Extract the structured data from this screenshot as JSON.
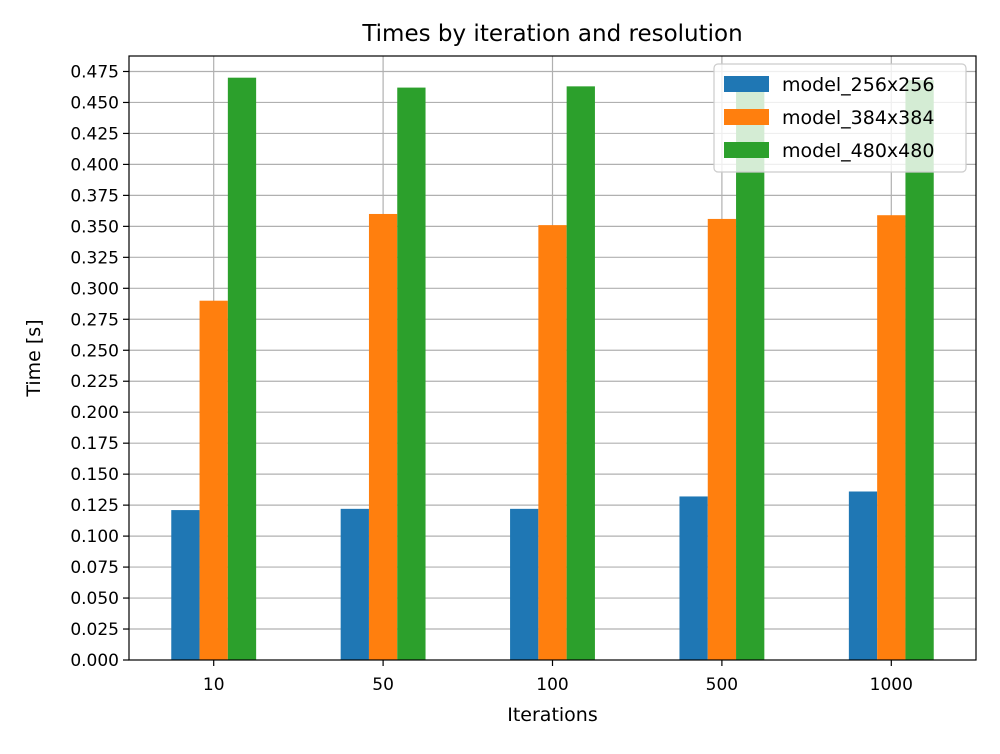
{
  "chart_data": {
    "type": "bar",
    "title": "Times by iteration and resolution",
    "xlabel": "Iterations",
    "ylabel": "Time [s]",
    "categories": [
      "10",
      "50",
      "100",
      "500",
      "1000"
    ],
    "ylim": [
      0,
      0.4875
    ],
    "yticks": [
      "0.000",
      "0.025",
      "0.050",
      "0.075",
      "0.100",
      "0.125",
      "0.150",
      "0.175",
      "0.200",
      "0.225",
      "0.250",
      "0.275",
      "0.300",
      "0.325",
      "0.350",
      "0.375",
      "0.400",
      "0.425",
      "0.450",
      "0.475"
    ],
    "grid": true,
    "legend_position": "top-right",
    "series": [
      {
        "name": "model_256x256",
        "color": "#1f77b4",
        "values": [
          0.121,
          0.122,
          0.122,
          0.132,
          0.136
        ]
      },
      {
        "name": "model_384x384",
        "color": "#ff7f0e",
        "values": [
          0.29,
          0.36,
          0.351,
          0.356,
          0.359
        ]
      },
      {
        "name": "model_480x480",
        "color": "#2ca02c",
        "values": [
          0.47,
          0.462,
          0.463,
          0.465,
          0.468
        ]
      }
    ]
  }
}
